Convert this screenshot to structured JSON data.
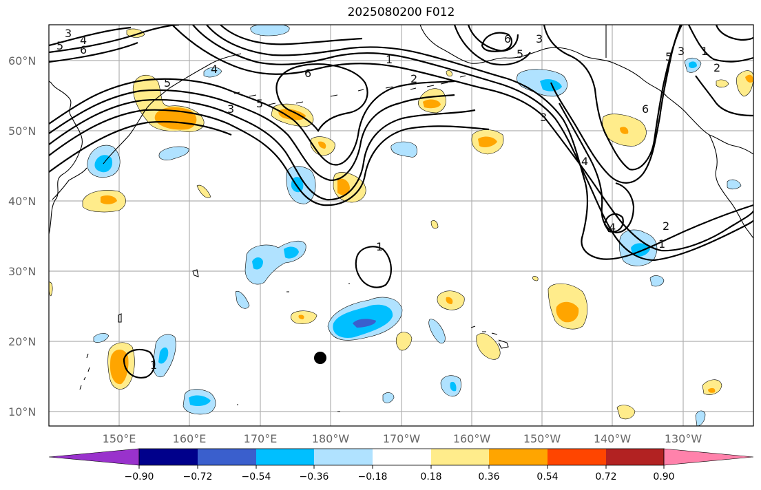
{
  "title": "2025080200 F012",
  "map": {
    "lat_labels": [
      "60°N",
      "50°N",
      "40°N",
      "30°N",
      "20°N",
      "10°N"
    ],
    "lon_labels": [
      "150°E",
      "160°E",
      "170°E",
      "180°W",
      "170°W",
      "160°W",
      "150°W",
      "140°W",
      "130°W"
    ],
    "gridlines": true,
    "marker": {
      "symbol": "black-dot",
      "lon": -181.5,
      "lat": 17.6
    },
    "contour_labels": [
      "1",
      "2",
      "3",
      "4",
      "5",
      "6"
    ]
  },
  "colorbar": {
    "tick_labels": [
      "−0.90",
      "−0.72",
      "−0.54",
      "−0.36",
      "−0.18",
      "0.18",
      "0.36",
      "0.54",
      "0.72",
      "0.90"
    ],
    "colors": [
      "#9932cc",
      "#00008b",
      "#3a5fcd",
      "#00bfff",
      "#b0e2ff",
      "#ffffff",
      "#ffec8b",
      "#ffa500",
      "#ff4500",
      "#b22222",
      "#ff82ab"
    ],
    "extend": "both"
  }
}
